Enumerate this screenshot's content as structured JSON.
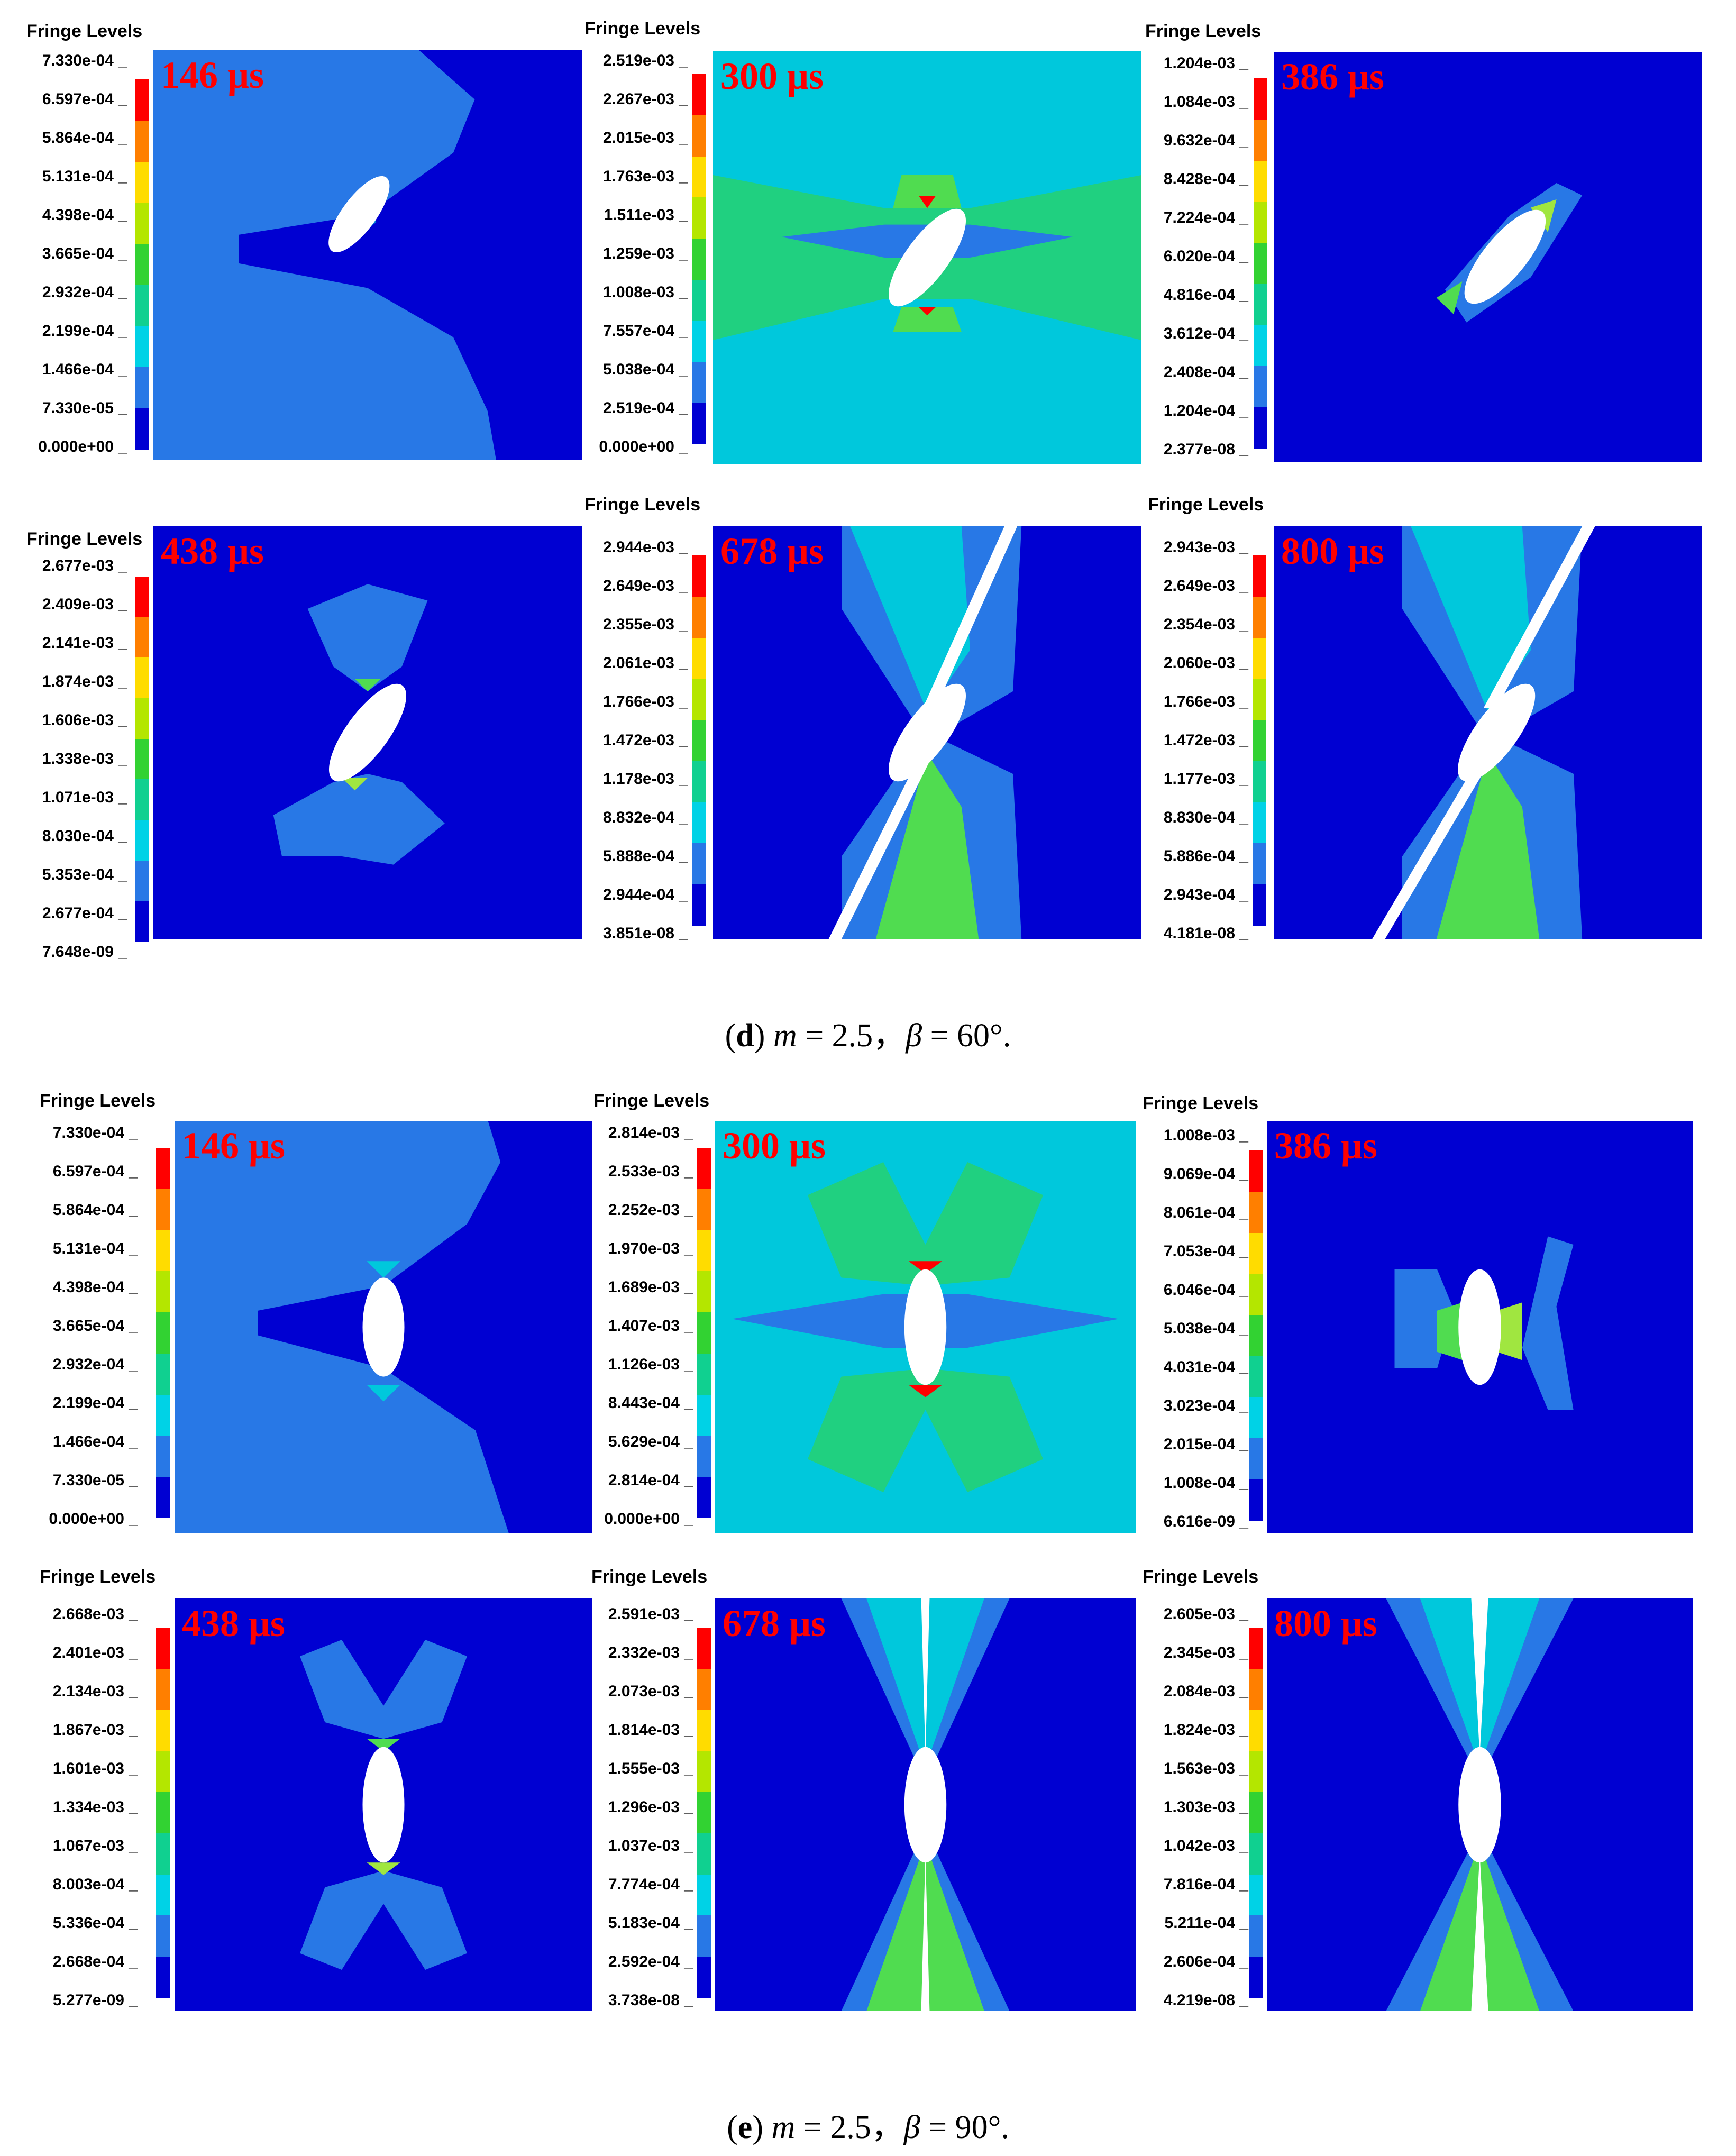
{
  "legend_title": "Fringe Levels",
  "colors": [
    "#ff0000",
    "#ff7f00",
    "#ffdc00",
    "#b4e600",
    "#32d232",
    "#10d090",
    "#00d2e6",
    "#2878e6",
    "#0000d2"
  ],
  "captions": [
    {
      "letter": "d",
      "text": " = 2.5，",
      "m": "m",
      "beta": "β",
      "angle": " = 60°."
    },
    {
      "letter": "e",
      "text": " = 2.5，",
      "m": "m",
      "beta": "β",
      "angle": " = 90°."
    }
  ],
  "panels": [
    {
      "time": "146 μs",
      "levels": [
        "7.330e-04",
        "6.597e-04",
        "5.864e-04",
        "5.131e-04",
        "4.398e-04",
        "3.665e-04",
        "2.932e-04",
        "2.199e-04",
        "1.466e-04",
        "7.330e-05",
        "0.000e+00"
      ]
    },
    {
      "time": "300 μs",
      "levels": [
        "2.519e-03",
        "2.267e-03",
        "2.015e-03",
        "1.763e-03",
        "1.511e-03",
        "1.259e-03",
        "1.008e-03",
        "7.557e-04",
        "5.038e-04",
        "2.519e-04",
        "0.000e+00"
      ]
    },
    {
      "time": "386 μs",
      "levels": [
        "1.204e-03",
        "1.084e-03",
        "9.632e-04",
        "8.428e-04",
        "7.224e-04",
        "6.020e-04",
        "4.816e-04",
        "3.612e-04",
        "2.408e-04",
        "1.204e-04",
        "2.377e-08"
      ]
    },
    {
      "time": "438 μs",
      "levels": [
        "2.677e-03",
        "2.409e-03",
        "2.141e-03",
        "1.874e-03",
        "1.606e-03",
        "1.338e-03",
        "1.071e-03",
        "8.030e-04",
        "5.353e-04",
        "2.677e-04",
        "7.648e-09"
      ]
    },
    {
      "time": "678 μs",
      "levels": [
        "2.944e-03",
        "2.649e-03",
        "2.355e-03",
        "2.061e-03",
        "1.766e-03",
        "1.472e-03",
        "1.178e-03",
        "8.832e-04",
        "5.888e-04",
        "2.944e-04",
        "3.851e-08"
      ]
    },
    {
      "time": "800 μs",
      "levels": [
        "2.943e-03",
        "2.649e-03",
        "2.354e-03",
        "2.060e-03",
        "1.766e-03",
        "1.472e-03",
        "1.177e-03",
        "8.830e-04",
        "5.886e-04",
        "2.943e-04",
        "4.181e-08"
      ]
    },
    {
      "time": "146 μs",
      "levels": [
        "7.330e-04",
        "6.597e-04",
        "5.864e-04",
        "5.131e-04",
        "4.398e-04",
        "3.665e-04",
        "2.932e-04",
        "2.199e-04",
        "1.466e-04",
        "7.330e-05",
        "0.000e+00"
      ]
    },
    {
      "time": "300 μs",
      "levels": [
        "2.814e-03",
        "2.533e-03",
        "2.252e-03",
        "1.970e-03",
        "1.689e-03",
        "1.407e-03",
        "1.126e-03",
        "8.443e-04",
        "5.629e-04",
        "2.814e-04",
        "0.000e+00"
      ]
    },
    {
      "time": "386 μs",
      "levels": [
        "1.008e-03",
        "9.069e-04",
        "8.061e-04",
        "7.053e-04",
        "6.046e-04",
        "5.038e-04",
        "4.031e-04",
        "3.023e-04",
        "2.015e-04",
        "1.008e-04",
        "6.616e-09"
      ]
    },
    {
      "time": "438 μs",
      "levels": [
        "2.668e-03",
        "2.401e-03",
        "2.134e-03",
        "1.867e-03",
        "1.601e-03",
        "1.334e-03",
        "1.067e-03",
        "8.003e-04",
        "5.336e-04",
        "2.668e-04",
        "5.277e-09"
      ]
    },
    {
      "time": "678 μs",
      "levels": [
        "2.591e-03",
        "2.332e-03",
        "2.073e-03",
        "1.814e-03",
        "1.555e-03",
        "1.296e-03",
        "1.037e-03",
        "7.774e-04",
        "5.183e-04",
        "2.592e-04",
        "3.738e-08"
      ]
    },
    {
      "time": "800 μs",
      "levels": [
        "2.605e-03",
        "2.345e-03",
        "2.084e-03",
        "1.824e-03",
        "1.563e-03",
        "1.303e-03",
        "1.042e-03",
        "7.816e-04",
        "5.211e-04",
        "2.606e-04",
        "4.219e-08"
      ]
    }
  ]
}
